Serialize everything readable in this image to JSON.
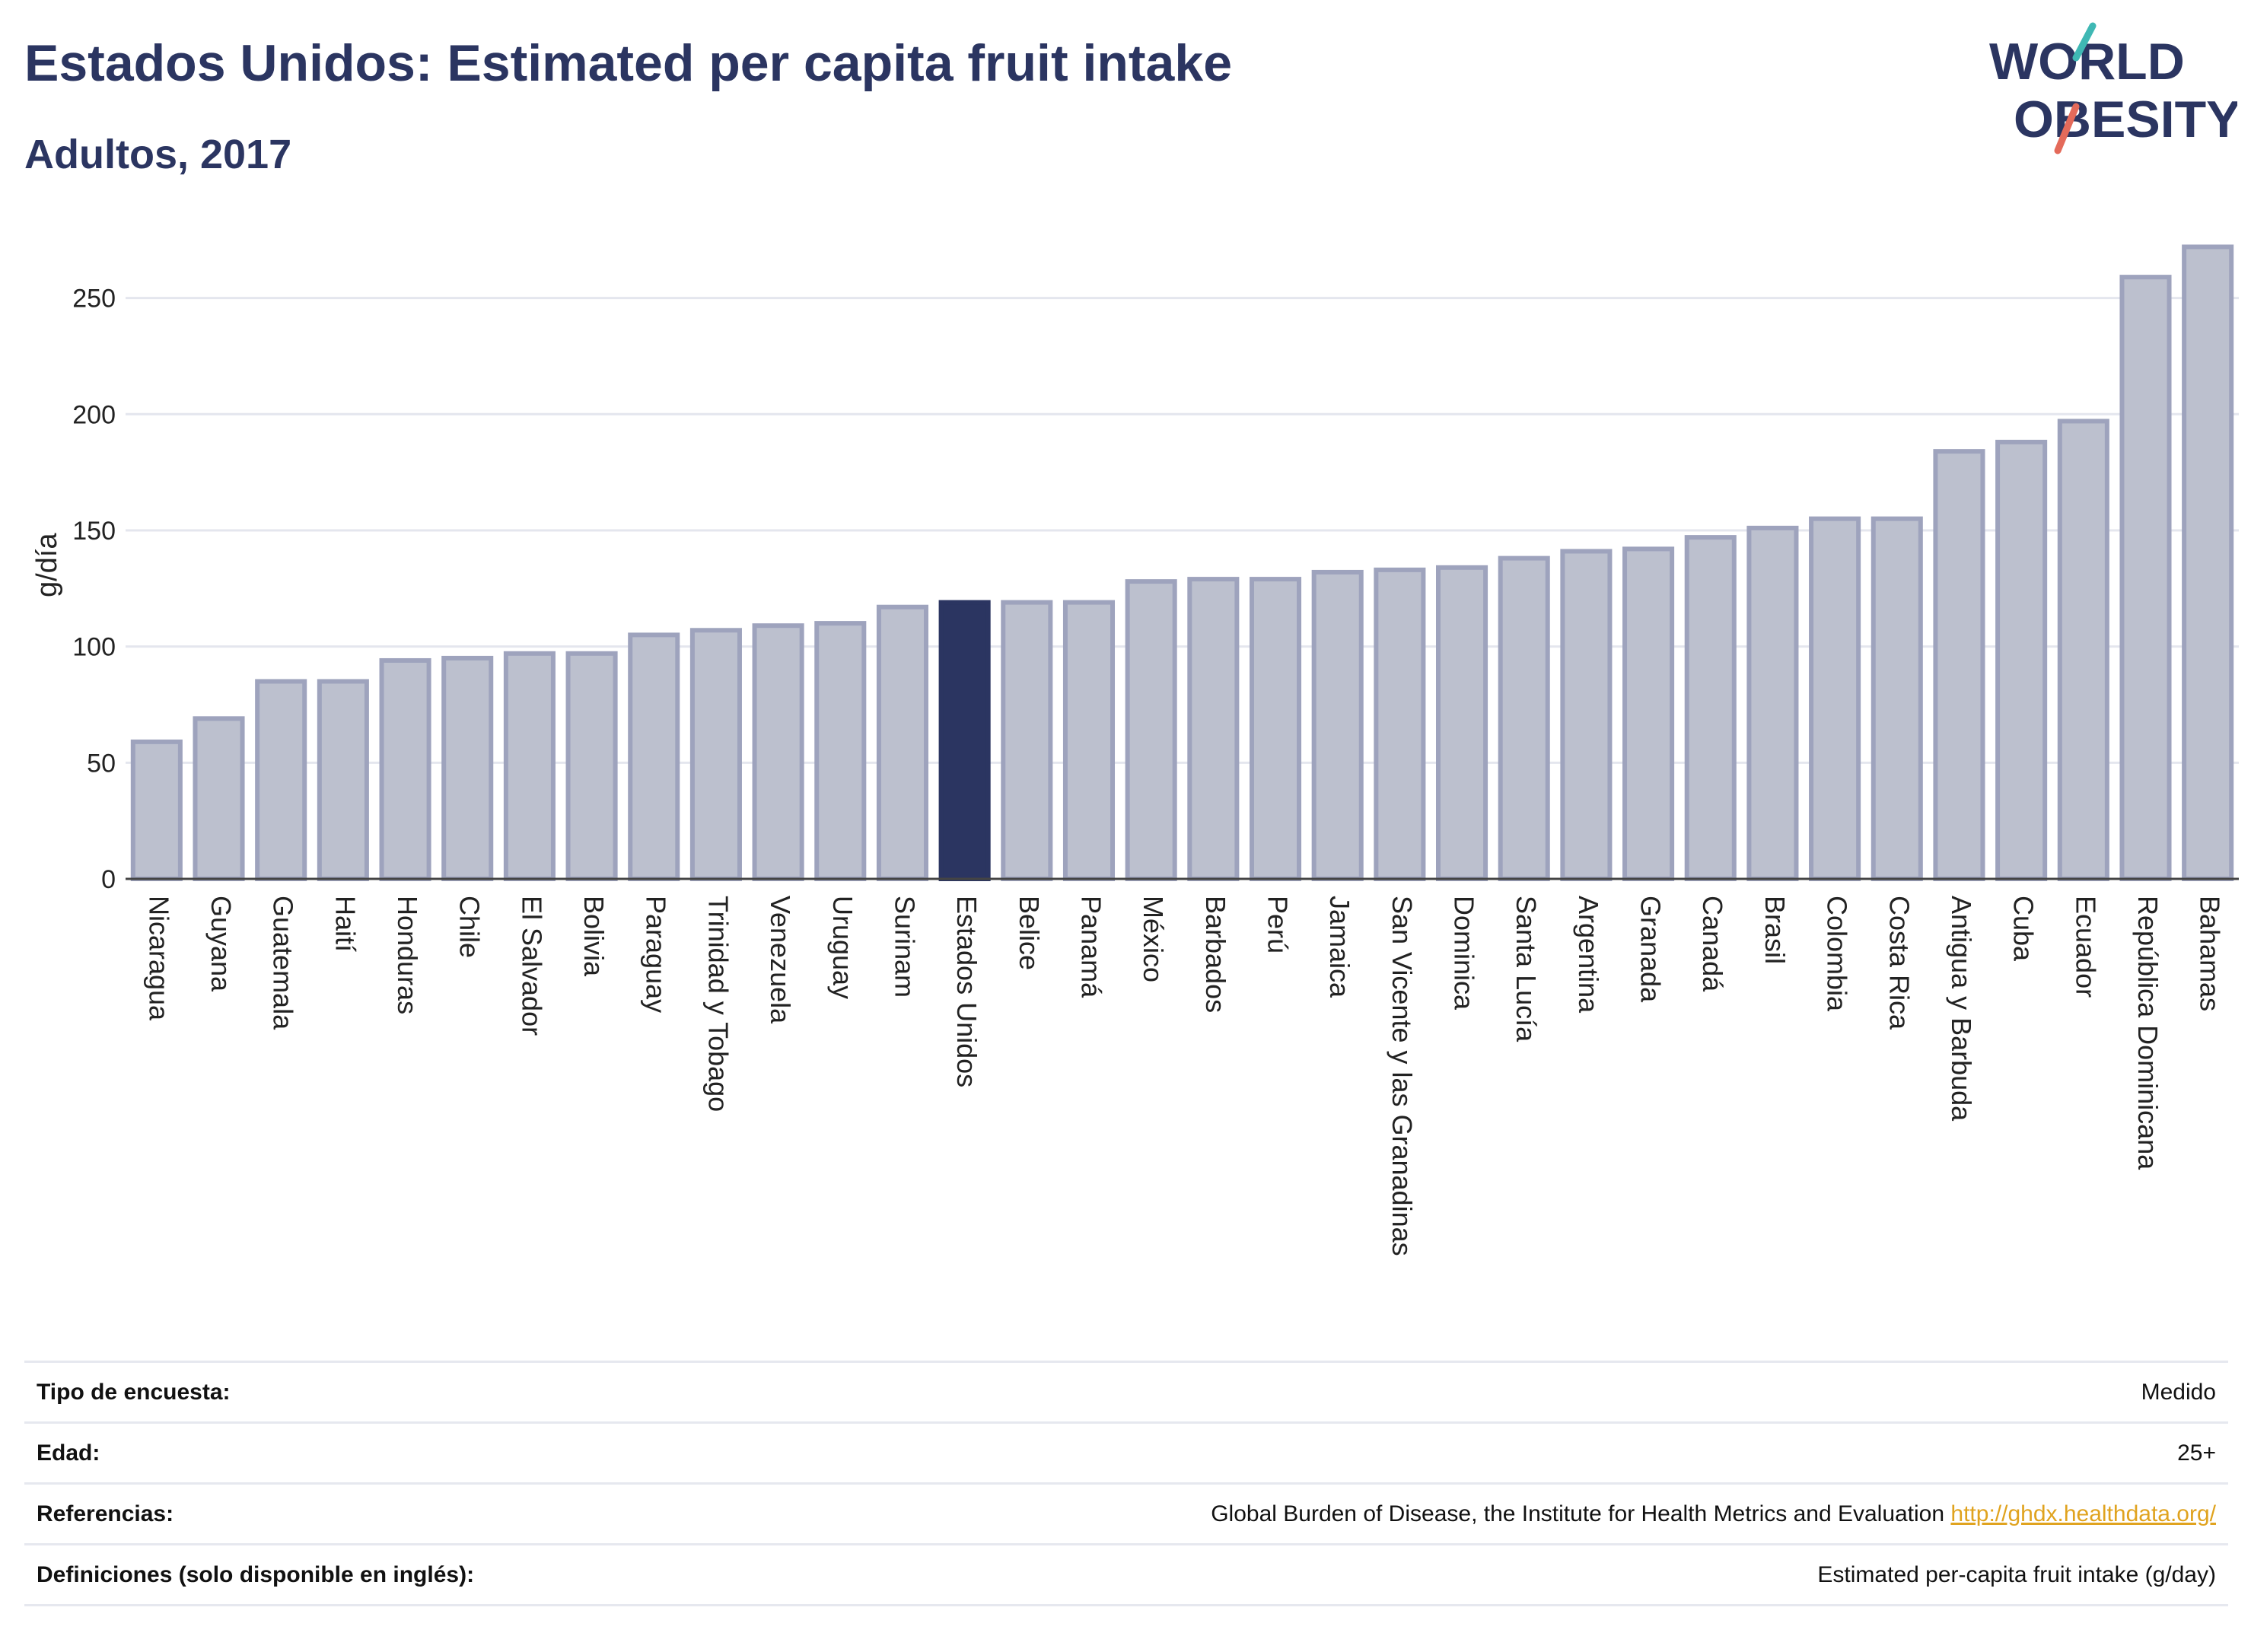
{
  "header": {
    "title": "Estados Unidos: Estimated per capita fruit intake",
    "subtitle": "Adultos, 2017"
  },
  "logo": {
    "line1": "WORLD",
    "line2": "OBESITY"
  },
  "chart_data": {
    "type": "bar",
    "title": "Estados Unidos: Estimated per capita fruit intake",
    "subtitle": "Adultos, 2017",
    "xlabel": "",
    "ylabel": "g/día",
    "ylim": [
      0,
      280
    ],
    "yticks": [
      0,
      50,
      100,
      150,
      200,
      250
    ],
    "grid": true,
    "highlight": "Estados Unidos",
    "colors": {
      "bar": "#bcc0ce",
      "bar_edge": "#9ea3bd",
      "highlight": "#2b3561"
    },
    "categories": [
      "Nicaragua",
      "Guyana",
      "Guatemala",
      "Haití",
      "Honduras",
      "Chile",
      "El Salvador",
      "Bolivia",
      "Paraguay",
      "Trinidad y Tobago",
      "Venezuela",
      "Uruguay",
      "Surinam",
      "Estados Unidos",
      "Belice",
      "Panamá",
      "México",
      "Barbados",
      "Perú",
      "Jamaica",
      "San Vicente y las Granadinas",
      "Dominica",
      "Santa Lucía",
      "Argentina",
      "Granada",
      "Canadá",
      "Brasil",
      "Colombia",
      "Costa Rica",
      "Antigua y Barbuda",
      "Cuba",
      "Ecuador",
      "República Dominicana",
      "Bahamas"
    ],
    "values": [
      59,
      69,
      85,
      85,
      94,
      95,
      97,
      97,
      105,
      107,
      109,
      110,
      117,
      119,
      119,
      119,
      128,
      129,
      129,
      132,
      133,
      134,
      138,
      141,
      142,
      147,
      151,
      155,
      155,
      184,
      188,
      197,
      259,
      272
    ]
  },
  "info": [
    {
      "label": "Tipo de encuesta:",
      "value": "Medido"
    },
    {
      "label": "Edad:",
      "value": "25+"
    },
    {
      "label": "Referencias:",
      "value": "Global Burden of Disease, the Institute for Health Metrics and Evaluation",
      "link": "http://ghdx.healthdata.org/"
    },
    {
      "label": "Definiciones (solo disponible en inglés):",
      "value": "Estimated per-capita fruit intake (g/day)"
    }
  ]
}
